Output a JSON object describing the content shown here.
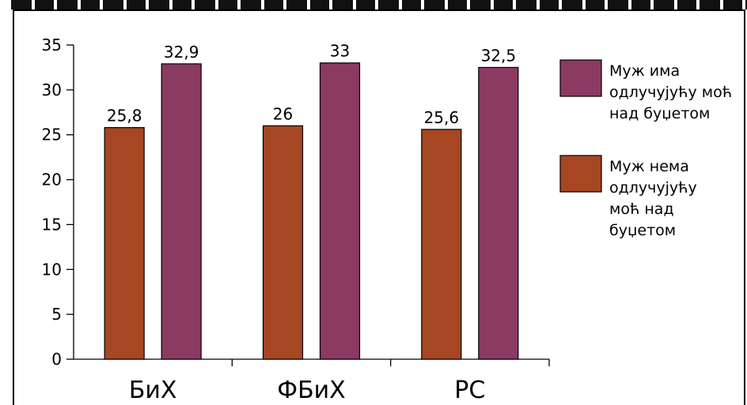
{
  "chart_data": {
    "type": "bar",
    "categories": [
      "БиХ",
      "ФБиХ",
      "РС"
    ],
    "series": [
      {
        "name": "Муж нема одлучујућу моћ над буџетом",
        "color": "#A64623",
        "values": [
          25.8,
          26,
          25.6
        ],
        "labels": [
          "25,8",
          "26",
          "25,6"
        ]
      },
      {
        "name": "Муж има одлучујућу моћ над буџетом",
        "color": "#8B3A62",
        "values": [
          32.9,
          33,
          32.5
        ],
        "labels": [
          "32,9",
          "33",
          "32,5"
        ]
      }
    ],
    "ylim": [
      0,
      35
    ],
    "yticks": [
      0,
      5,
      10,
      15,
      20,
      25,
      30,
      35
    ],
    "ytick_labels": [
      "0",
      "5",
      "10",
      "15",
      "20",
      "25",
      "30",
      "35"
    ],
    "grid": false,
    "legend": {
      "position": "right",
      "entries": [
        {
          "lines": [
            "Муж има",
            "одлучујућу моћ",
            "над буџетом"
          ],
          "color": "#8B3A62"
        },
        {
          "lines": [
            "Муж нема",
            "одлучујућу",
            "моћ над",
            "буџетом"
          ],
          "color": "#A64623"
        }
      ]
    }
  }
}
